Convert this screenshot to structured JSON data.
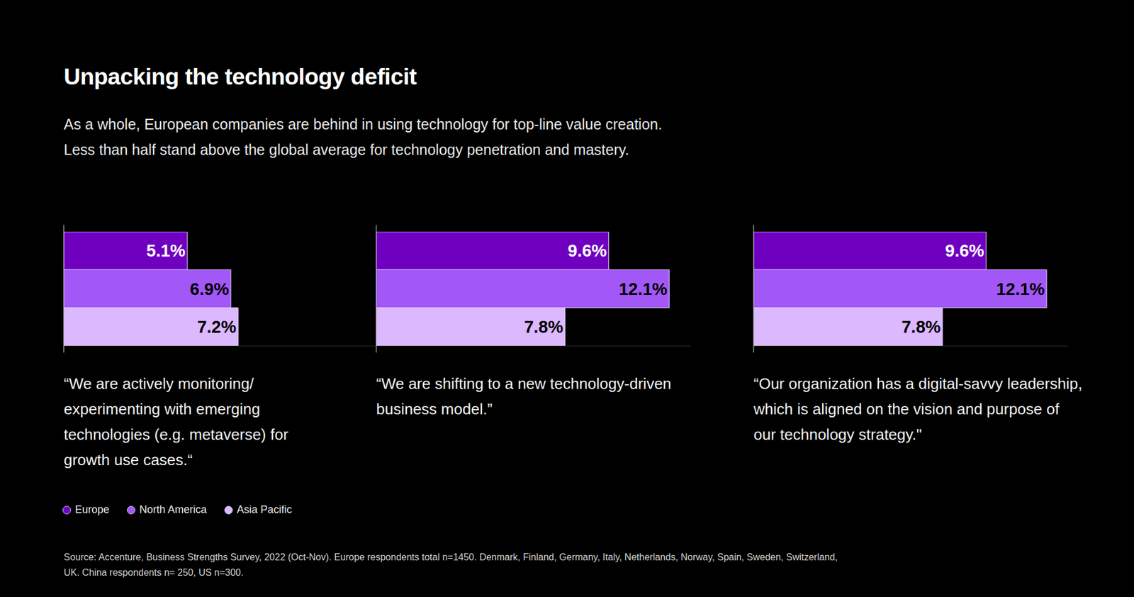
{
  "title": "Unpacking the technology deficit",
  "subtitle": [
    "As a whole, European companies are behind in using technology for top-line value creation.",
    "Less than half stand above the global average for technology penetration and mastery."
  ],
  "source": "Source: Accenture, Business Strengths Survey, 2022 (Oct-Nov). Europe respondents total n=1450. Denmark, Finland, Germany, Italy, Netherlands, Norway, Spain, Sweden, Switzerland, UK. China respondents n= 250, US n=300.",
  "chart_data": [
    {
      "type": "bar",
      "orientation": "horizontal",
      "title": "“We are actively monitoring/ experimenting with emerging technologies (e.g. metaverse) for growth use cases.“",
      "categories": [
        "Europe",
        "North America",
        "Asia Pacific"
      ],
      "values": [
        5.1,
        6.9,
        7.2
      ],
      "value_labels": [
        "5.1%",
        "6.9%",
        "7.2%"
      ],
      "colors": [
        "#7000c0",
        "#a257f7",
        "#dcb8ff"
      ],
      "xlim": [
        0,
        13
      ],
      "data_labels": true,
      "tick_labels": false,
      "grid": false,
      "legend": "bottom left"
    },
    {
      "type": "bar",
      "orientation": "horizontal",
      "title": "“We are shifting to a new technology-driven business model.”",
      "categories": [
        "Europe",
        "North America",
        "Asia Pacific"
      ],
      "values": [
        9.6,
        12.1,
        7.8
      ],
      "value_labels": [
        "9.6%",
        "12.1%",
        "7.8%"
      ],
      "colors": [
        "#7000c0",
        "#a257f7",
        "#dcb8ff"
      ],
      "xlim": [
        0,
        13
      ],
      "data_labels": true,
      "tick_labels": false,
      "grid": false
    },
    {
      "type": "bar",
      "orientation": "horizontal",
      "title": "“Our organization has a digital-savvy leadership, which is aligned on the vision and purpose of our technology strategy.\"",
      "categories": [
        "Europe",
        "North America",
        "Asia Pacific"
      ],
      "values": [
        9.6,
        12.1,
        7.8
      ],
      "value_labels": [
        "9.6%",
        "12.1%",
        "7.8%"
      ],
      "colors": [
        "#7000c0",
        "#a257f7",
        "#dcb8ff"
      ],
      "xlim": [
        0,
        13
      ],
      "data_labels": true,
      "tick_labels": false,
      "grid": false
    }
  ]
}
